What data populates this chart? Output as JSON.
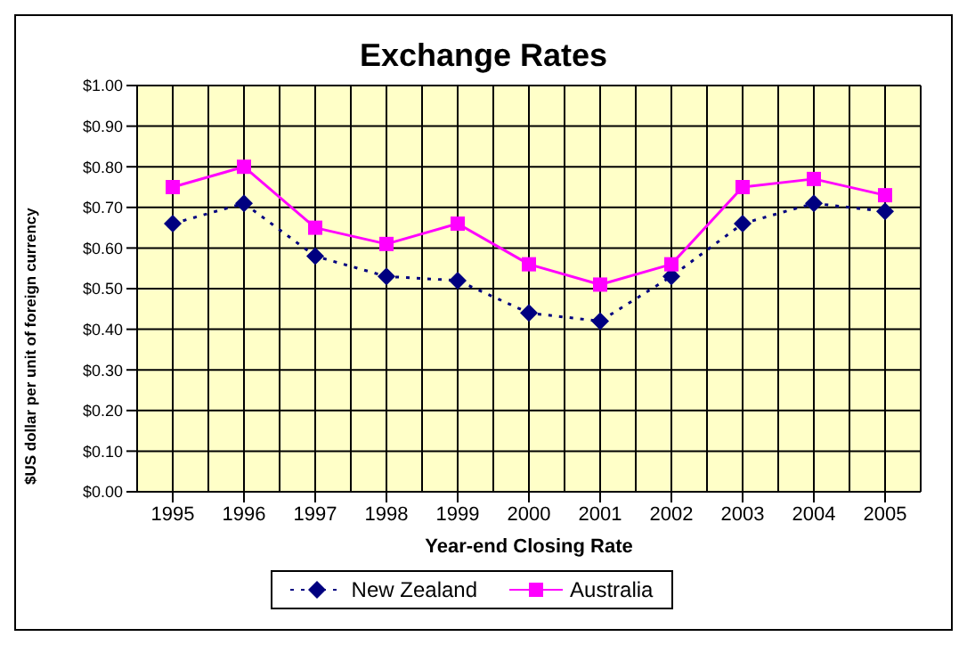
{
  "chart_data": {
    "type": "line",
    "title": "Exchange Rates",
    "xlabel": "Year-end Closing Rate",
    "ylabel": "$US dollar per unit of foreign currency",
    "categories": [
      "1995",
      "1996",
      "1997",
      "1998",
      "1999",
      "2000",
      "2001",
      "2002",
      "2003",
      "2004",
      "2005"
    ],
    "series": [
      {
        "name": "New Zealand",
        "color": "#000080",
        "line_style": "dotted",
        "marker": "diamond",
        "values": [
          0.66,
          0.71,
          0.58,
          0.53,
          0.52,
          0.44,
          0.42,
          0.53,
          0.66,
          0.71,
          0.69
        ]
      },
      {
        "name": "Australia",
        "color": "#ff00ff",
        "line_style": "solid",
        "marker": "square",
        "values": [
          0.75,
          0.8,
          0.65,
          0.61,
          0.66,
          0.56,
          0.51,
          0.56,
          0.75,
          0.77,
          0.73
        ]
      }
    ],
    "ylim": [
      0,
      1
    ],
    "yticks": [
      {
        "value": 0,
        "label": "$0.00"
      },
      {
        "value": 0.1,
        "label": "$0.10"
      },
      {
        "value": 0.2,
        "label": "$0.20"
      },
      {
        "value": 0.3,
        "label": "$0.30"
      },
      {
        "value": 0.4,
        "label": "$0.40"
      },
      {
        "value": 0.5,
        "label": "$0.50"
      },
      {
        "value": 0.6,
        "label": "$0.60"
      },
      {
        "value": 0.7,
        "label": "$0.70"
      },
      {
        "value": 0.8,
        "label": "$0.80"
      },
      {
        "value": 0.9,
        "label": "$0.90"
      },
      {
        "value": 1,
        "label": "$1.00"
      }
    ],
    "grid": true,
    "legend": "bottom"
  }
}
